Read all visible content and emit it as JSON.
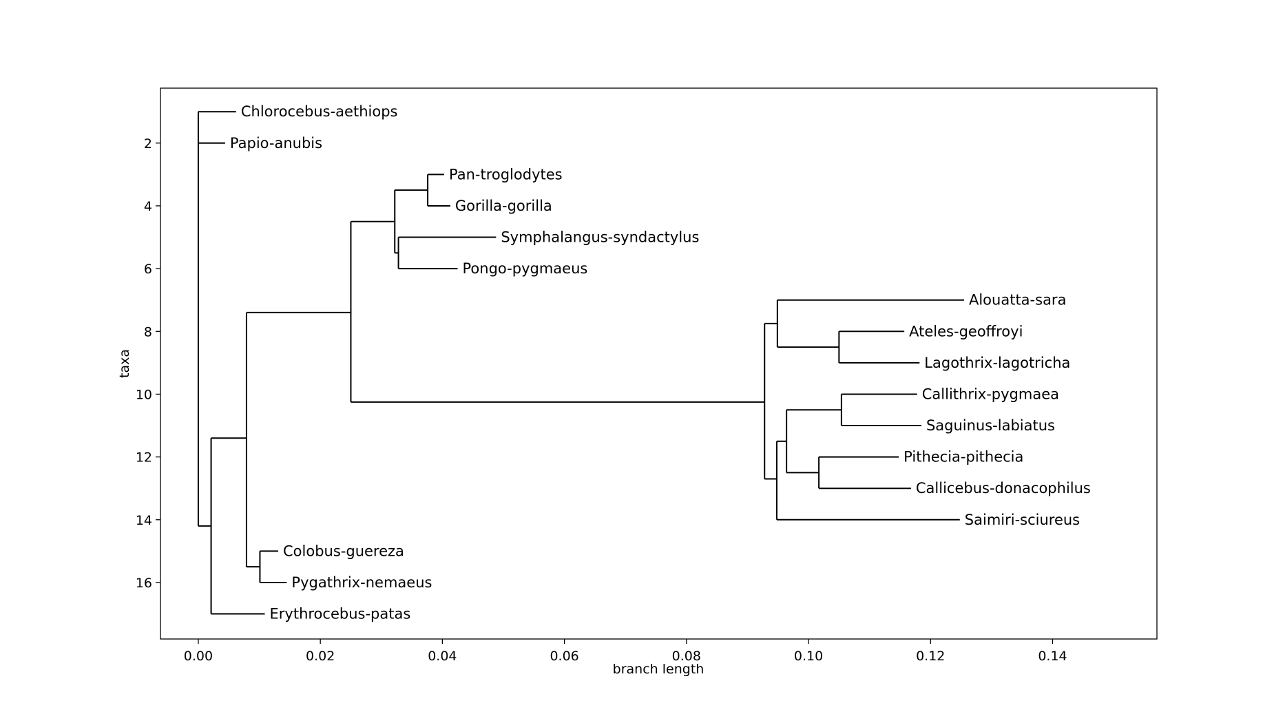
{
  "chart_data": {
    "type": "dendrogram",
    "xlabel": "branch length",
    "ylabel": "taxa",
    "xlim": [
      -0.0062,
      0.1571
    ],
    "ylim": [
      17.8,
      0.25
    ],
    "xticks": [
      0.0,
      0.02,
      0.04,
      0.06,
      0.08,
      0.1,
      0.12,
      0.14
    ],
    "xtick_labels": [
      "0.00",
      "0.02",
      "0.04",
      "0.06",
      "0.08",
      "0.10",
      "0.12",
      "0.14"
    ],
    "yticks": [
      2,
      4,
      6,
      8,
      10,
      12,
      14,
      16
    ],
    "ytick_labels": [
      "2",
      "4",
      "6",
      "8",
      "10",
      "12",
      "14",
      "16"
    ],
    "grid": false,
    "leaves": [
      {
        "name": "Chlorocebus-aethiops",
        "y": 1,
        "x": 0.0062
      },
      {
        "name": "Papio-anubis",
        "y": 2,
        "x": 0.0044
      },
      {
        "name": "Pan-troglodytes",
        "y": 3,
        "x": 0.0403
      },
      {
        "name": "Gorilla-gorilla",
        "y": 4,
        "x": 0.0413
      },
      {
        "name": "Symphalangus-syndactylus",
        "y": 5,
        "x": 0.0488
      },
      {
        "name": "Pongo-pygmaeus",
        "y": 6,
        "x": 0.0425
      },
      {
        "name": "Alouatta-sara",
        "y": 7,
        "x": 0.1255
      },
      {
        "name": "Ateles-geoffroyi",
        "y": 8,
        "x": 0.1157
      },
      {
        "name": "Lagothrix-lagotricha",
        "y": 9,
        "x": 0.1182
      },
      {
        "name": "Callithrix-pygmaea",
        "y": 10,
        "x": 0.1178
      },
      {
        "name": "Saguinus-labiatus",
        "y": 11,
        "x": 0.1185
      },
      {
        "name": "Pithecia-pithecia",
        "y": 12,
        "x": 0.1148
      },
      {
        "name": "Callicebus-donacophilus",
        "y": 13,
        "x": 0.1168
      },
      {
        "name": "Saimiri-sciureus",
        "y": 14,
        "x": 0.1248
      },
      {
        "name": "Colobus-guereza",
        "y": 15,
        "x": 0.0131
      },
      {
        "name": "Pygathrix-nemaeus",
        "y": 16,
        "x": 0.0145
      },
      {
        "name": "Erythrocebus-patas",
        "y": 17,
        "x": 0.0109
      }
    ],
    "internal_nodes": [
      {
        "id": "root",
        "x": 0.0,
        "y1": 1,
        "y2": 14.2,
        "y": 1
      },
      {
        "id": "n_old_world_rest",
        "x": 0.0021,
        "y1": 11.4,
        "y2": 17,
        "y": 14.2
      },
      {
        "id": "n_big",
        "x": 0.0079,
        "y1": 7.4,
        "y2": 15.5,
        "y": 11.4
      },
      {
        "id": "n_colobines",
        "x": 0.0101,
        "y1": 15,
        "y2": 16,
        "y": 15.5
      },
      {
        "id": "n_apes_nwm",
        "x": 0.025,
        "y1": 4.5,
        "y2": 10.25,
        "y": 7.4
      },
      {
        "id": "n_apes",
        "x": 0.0322,
        "y1": 3.5,
        "y2": 5.5,
        "y": 4.5
      },
      {
        "id": "n_pan_gorilla",
        "x": 0.0376,
        "y1": 3,
        "y2": 4,
        "y": 3.5
      },
      {
        "id": "n_sym_pongo",
        "x": 0.0328,
        "y1": 5,
        "y2": 6,
        "y": 5.5
      },
      {
        "id": "n_nwm",
        "x": 0.0928,
        "y1": 7.75,
        "y2": 12.7,
        "y": 10.25
      },
      {
        "id": "n_atelids",
        "x": 0.0949,
        "y1": 7,
        "y2": 8.5,
        "y": 7.75
      },
      {
        "id": "n_ateles_lago",
        "x": 0.105,
        "y1": 8,
        "y2": 9,
        "y": 8.5
      },
      {
        "id": "n_rest_nwm",
        "x": 0.0948,
        "y1": 11.5,
        "y2": 14,
        "y": 12.7
      },
      {
        "id": "n_cal_pith",
        "x": 0.0964,
        "y1": 10.5,
        "y2": 12.5,
        "y": 11.5
      },
      {
        "id": "n_callitrichids",
        "x": 0.1054,
        "y1": 10,
        "y2": 11,
        "y": 10.5
      },
      {
        "id": "n_pitheciids",
        "x": 0.1017,
        "y1": 12,
        "y2": 13,
        "y": 12.5
      }
    ],
    "edges": [
      [
        "root",
        "Chlorocebus-aethiops"
      ],
      [
        "root",
        "Papio-anubis"
      ],
      [
        "root",
        "n_old_world_rest"
      ],
      [
        "n_old_world_rest",
        "n_big"
      ],
      [
        "n_old_world_rest",
        "Erythrocebus-patas"
      ],
      [
        "n_big",
        "n_apes_nwm"
      ],
      [
        "n_big",
        "n_colobines"
      ],
      [
        "n_colobines",
        "Colobus-guereza"
      ],
      [
        "n_colobines",
        "Pygathrix-nemaeus"
      ],
      [
        "n_apes_nwm",
        "n_apes"
      ],
      [
        "n_apes_nwm",
        "n_nwm"
      ],
      [
        "n_apes",
        "n_pan_gorilla"
      ],
      [
        "n_apes",
        "n_sym_pongo"
      ],
      [
        "n_pan_gorilla",
        "Pan-troglodytes"
      ],
      [
        "n_pan_gorilla",
        "Gorilla-gorilla"
      ],
      [
        "n_sym_pongo",
        "Symphalangus-syndactylus"
      ],
      [
        "n_sym_pongo",
        "Pongo-pygmaeus"
      ],
      [
        "n_nwm",
        "n_atelids"
      ],
      [
        "n_nwm",
        "n_rest_nwm"
      ],
      [
        "n_atelids",
        "Alouatta-sara"
      ],
      [
        "n_atelids",
        "n_ateles_lago"
      ],
      [
        "n_ateles_lago",
        "Ateles-geoffroyi"
      ],
      [
        "n_ateles_lago",
        "Lagothrix-lagotricha"
      ],
      [
        "n_rest_nwm",
        "n_cal_pith"
      ],
      [
        "n_rest_nwm",
        "Saimiri-sciureus"
      ],
      [
        "n_cal_pith",
        "n_callitrichids"
      ],
      [
        "n_cal_pith",
        "n_pitheciids"
      ],
      [
        "n_callitrichids",
        "Callithrix-pygmaea"
      ],
      [
        "n_callitrichids",
        "Saguinus-labiatus"
      ],
      [
        "n_pitheciids",
        "Pithecia-pithecia"
      ],
      [
        "n_pitheciids",
        "Callicebus-donacophilus"
      ]
    ]
  }
}
